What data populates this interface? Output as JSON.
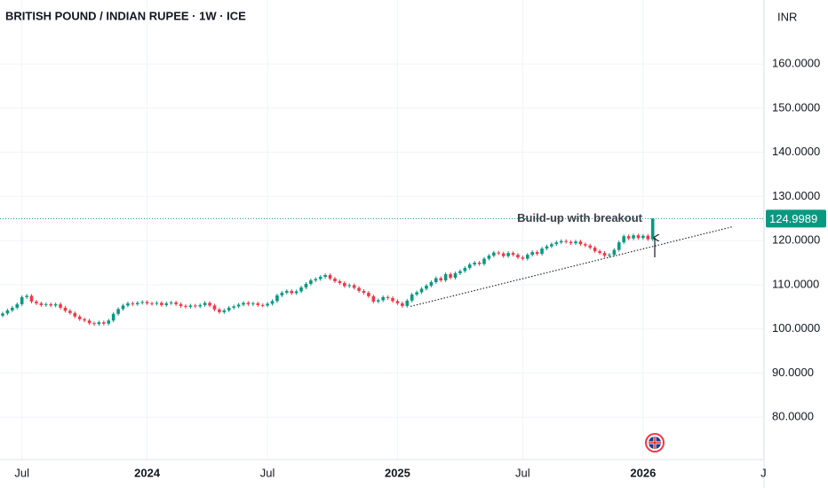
{
  "chart_data": {
    "type": "candlestick",
    "title": "BRITISH POUND / INDIAN RUPEE · 1W · ICE",
    "currency": "INR",
    "annotation": "Build-up with breakout",
    "up_color": "#089981",
    "down_color": "#f23645",
    "ylim": [
      70.4,
      174.5
    ],
    "yticks": [
      {
        "value": 80,
        "label": "80.0000"
      },
      {
        "value": 90,
        "label": "90.0000"
      },
      {
        "value": 100,
        "label": "100.0000"
      },
      {
        "value": 110,
        "label": "110.0000"
      },
      {
        "value": 120,
        "label": "120.0000"
      },
      {
        "value": 130,
        "label": "130.0000"
      },
      {
        "value": 140,
        "label": "140.0000"
      },
      {
        "value": 150,
        "label": "150.0000"
      },
      {
        "value": 160,
        "label": "160.0000"
      }
    ],
    "grid": true,
    "trendline": {
      "start": [
        84.7,
        105.1
      ],
      "end": [
        151.8,
        123.2
      ]
    },
    "categories": [
      null,
      null,
      null,
      null,
      "Jul",
      null,
      null,
      null,
      null,
      null,
      null,
      null,
      null,
      null,
      null,
      null,
      null,
      null,
      null,
      null,
      null,
      null,
      null,
      null,
      null,
      null,
      null,
      null,
      null,
      null,
      "2024",
      null,
      null,
      null,
      null,
      null,
      null,
      null,
      null,
      null,
      null,
      null,
      null,
      null,
      null,
      null,
      null,
      null,
      null,
      null,
      null,
      null,
      null,
      null,
      null,
      "Jul",
      null,
      null,
      null,
      null,
      null,
      null,
      null,
      null,
      null,
      null,
      null,
      null,
      null,
      null,
      null,
      null,
      null,
      null,
      null,
      null,
      null,
      null,
      null,
      null,
      null,
      null,
      "2025",
      null,
      null,
      null,
      null,
      null,
      null,
      null,
      null,
      null,
      null,
      null,
      null,
      null,
      null,
      null,
      null,
      null,
      null,
      null,
      null,
      null,
      null,
      null,
      null,
      null,
      "Jul",
      null,
      null,
      null,
      null,
      null,
      null,
      null,
      null,
      null,
      null,
      null,
      null,
      null,
      null,
      null,
      null,
      null,
      null,
      null,
      null,
      null,
      null,
      null,
      null,
      "2026",
      null,
      null,
      null,
      null,
      null,
      null,
      null,
      null,
      null,
      null,
      null,
      null,
      null,
      null,
      null,
      null,
      null,
      null,
      null,
      null,
      null,
      null,
      null,
      null,
      "J"
    ],
    "open": [
      103.0,
      103.5,
      104.2,
      104.8,
      105.6,
      107.2,
      107.5,
      106.2,
      105.8,
      105.4,
      105.6,
      105.3,
      105.6,
      104.8,
      104.1,
      103.6,
      102.8,
      102.2,
      101.9,
      101.3,
      101.1,
      101.5,
      101.2,
      101.9,
      103.4,
      104.5,
      105.3,
      105.8,
      105.6,
      105.9,
      106.1,
      105.8,
      105.7,
      105.9,
      105.4,
      105.8,
      106.0,
      105.6,
      105.2,
      105.0,
      105.3,
      105.1,
      105.4,
      105.9,
      105.3,
      104.4,
      103.8,
      104.2,
      104.8,
      105.1,
      105.5,
      105.9,
      105.6,
      105.8,
      105.4,
      105.3,
      105.7,
      106.3,
      107.6,
      108.2,
      108.6,
      108.1,
      108.5,
      109.4,
      110.2,
      111.0,
      111.3,
      111.8,
      112.2,
      111.4,
      110.8,
      110.4,
      109.7,
      109.9,
      109.3,
      108.6,
      108.2,
      107.4,
      106.2,
      106.5,
      107.2,
      107.0,
      106.3,
      105.8,
      105.2,
      106.4,
      107.8,
      108.3,
      109.1,
      109.8,
      110.6,
      111.5,
      111.0,
      112.4,
      111.6,
      112.6,
      113.1,
      113.8,
      114.6,
      115.0,
      114.7,
      115.9,
      116.6,
      117.3,
      117.1,
      116.5,
      117.2,
      116.8,
      116.2,
      115.9,
      116.8,
      117.4,
      117.0,
      118.2,
      118.7,
      119.2,
      119.6,
      119.9,
      119.7,
      119.4,
      119.8,
      119.2,
      118.9,
      118.4,
      117.6,
      117.2,
      116.6,
      116.8,
      117.9,
      119.6,
      121.0,
      120.5,
      121.2,
      120.6,
      121.1,
      120.3,
      null,
      null,
      null,
      null,
      null,
      null,
      null,
      null,
      null,
      null,
      null,
      null,
      null,
      null,
      null,
      null,
      null,
      null,
      null,
      null,
      null,
      null,
      null
    ],
    "high": [
      103.9,
      104.6,
      105.2,
      106.0,
      107.6,
      107.9,
      107.9,
      106.6,
      106.2,
      106.0,
      106.0,
      106.0,
      106.0,
      105.2,
      104.5,
      104.0,
      103.2,
      102.6,
      102.3,
      101.7,
      101.9,
      101.9,
      102.3,
      103.8,
      104.9,
      105.7,
      106.2,
      106.2,
      106.3,
      106.5,
      106.5,
      106.2,
      106.3,
      106.3,
      106.2,
      106.4,
      106.4,
      106.0,
      105.6,
      105.7,
      105.7,
      105.8,
      106.3,
      106.3,
      105.7,
      104.8,
      104.6,
      105.2,
      105.5,
      105.9,
      106.3,
      106.3,
      106.2,
      106.2,
      105.8,
      106.1,
      106.7,
      108.0,
      108.6,
      109.0,
      109.0,
      108.9,
      109.8,
      110.6,
      111.4,
      111.7,
      112.2,
      112.6,
      112.6,
      111.8,
      111.2,
      110.8,
      110.3,
      110.3,
      109.7,
      109.0,
      108.6,
      107.8,
      106.9,
      107.6,
      107.6,
      107.4,
      106.7,
      106.2,
      106.8,
      108.2,
      108.7,
      109.5,
      110.2,
      111.0,
      111.9,
      111.9,
      112.8,
      112.8,
      113.0,
      113.5,
      114.2,
      115.0,
      115.4,
      115.4,
      116.3,
      117.0,
      117.7,
      117.7,
      117.5,
      117.6,
      117.6,
      117.2,
      116.6,
      117.2,
      117.8,
      117.8,
      118.6,
      119.1,
      119.6,
      120.0,
      120.3,
      120.3,
      120.1,
      120.2,
      120.2,
      119.6,
      119.3,
      118.8,
      118.0,
      117.6,
      117.2,
      118.3,
      120.0,
      121.4,
      121.4,
      121.6,
      121.6,
      121.5,
      121.5,
      125.1,
      null,
      null,
      null,
      null,
      null,
      null,
      null,
      null,
      null,
      null,
      null,
      null,
      null,
      null,
      null,
      null,
      null,
      null,
      null,
      null,
      null,
      null,
      null
    ],
    "low": [
      102.6,
      103.1,
      103.8,
      104.4,
      105.2,
      106.8,
      105.8,
      105.4,
      105.0,
      105.0,
      104.9,
      104.9,
      104.4,
      103.7,
      103.2,
      102.4,
      101.8,
      101.5,
      100.9,
      100.7,
      100.7,
      100.8,
      100.8,
      101.5,
      103.0,
      104.1,
      104.9,
      105.2,
      105.2,
      105.5,
      105.4,
      105.3,
      105.3,
      105.0,
      105.0,
      105.4,
      105.2,
      104.8,
      104.6,
      104.6,
      104.7,
      104.7,
      105.0,
      104.9,
      104.0,
      103.4,
      103.4,
      103.8,
      104.4,
      104.7,
      105.1,
      105.2,
      105.2,
      105.0,
      104.9,
      104.9,
      105.3,
      105.9,
      107.2,
      107.8,
      107.7,
      107.7,
      108.1,
      109.0,
      109.8,
      110.6,
      110.9,
      111.4,
      111.0,
      110.4,
      110.0,
      109.3,
      109.3,
      108.9,
      108.2,
      107.8,
      107.0,
      105.8,
      105.8,
      106.1,
      106.6,
      105.9,
      105.4,
      104.8,
      104.8,
      106.0,
      107.4,
      107.9,
      108.7,
      109.4,
      110.2,
      110.6,
      110.6,
      111.2,
      111.2,
      112.2,
      112.7,
      113.4,
      114.2,
      114.3,
      114.3,
      115.5,
      116.2,
      116.7,
      116.1,
      116.1,
      116.4,
      115.8,
      115.5,
      115.5,
      116.4,
      116.6,
      116.6,
      117.8,
      118.3,
      118.8,
      119.2,
      119.3,
      119.0,
      119.0,
      118.8,
      118.5,
      118.0,
      117.2,
      116.8,
      116.2,
      116.2,
      116.4,
      117.5,
      119.2,
      120.1,
      120.1,
      120.2,
      120.2,
      119.9,
      119.9,
      null,
      null,
      null,
      null,
      null,
      null,
      null,
      null,
      null,
      null,
      null,
      null,
      null,
      null,
      null,
      null,
      null,
      null,
      null,
      null,
      null,
      null,
      null
    ],
    "close": [
      103.5,
      104.2,
      104.8,
      105.6,
      107.2,
      107.5,
      106.2,
      105.8,
      105.4,
      105.6,
      105.3,
      105.6,
      104.8,
      104.1,
      103.6,
      102.8,
      102.2,
      101.9,
      101.3,
      101.1,
      101.5,
      101.2,
      101.9,
      103.4,
      104.5,
      105.3,
      105.8,
      105.6,
      105.9,
      106.1,
      105.8,
      105.7,
      105.9,
      105.4,
      105.8,
      106.0,
      105.6,
      105.2,
      105.0,
      105.3,
      105.1,
      105.4,
      105.9,
      105.3,
      104.4,
      103.8,
      104.2,
      104.8,
      105.1,
      105.5,
      105.9,
      105.6,
      105.8,
      105.4,
      105.3,
      105.7,
      106.3,
      107.6,
      108.2,
      108.6,
      108.1,
      108.5,
      109.4,
      110.2,
      111.0,
      111.3,
      111.8,
      112.2,
      111.4,
      110.8,
      110.4,
      109.7,
      109.9,
      109.3,
      108.6,
      108.2,
      107.4,
      106.2,
      106.5,
      107.2,
      107.0,
      106.3,
      105.8,
      105.2,
      106.4,
      107.8,
      108.3,
      109.1,
      109.8,
      110.6,
      111.5,
      111.0,
      112.4,
      111.6,
      112.6,
      113.1,
      113.8,
      114.6,
      115.0,
      114.7,
      115.9,
      116.6,
      117.3,
      117.1,
      116.5,
      117.2,
      116.8,
      116.2,
      115.9,
      116.8,
      117.4,
      117.0,
      118.2,
      118.7,
      119.2,
      119.6,
      119.9,
      119.7,
      119.4,
      119.8,
      119.2,
      118.9,
      118.4,
      117.6,
      117.2,
      116.6,
      116.8,
      117.9,
      119.6,
      121.0,
      120.5,
      121.2,
      120.6,
      121.1,
      120.3,
      124.9989,
      null,
      null,
      null,
      null,
      null,
      null,
      null,
      null,
      null,
      null,
      null,
      null,
      null,
      null,
      null,
      null,
      null,
      null,
      null,
      null,
      null,
      null,
      null
    ]
  }
}
